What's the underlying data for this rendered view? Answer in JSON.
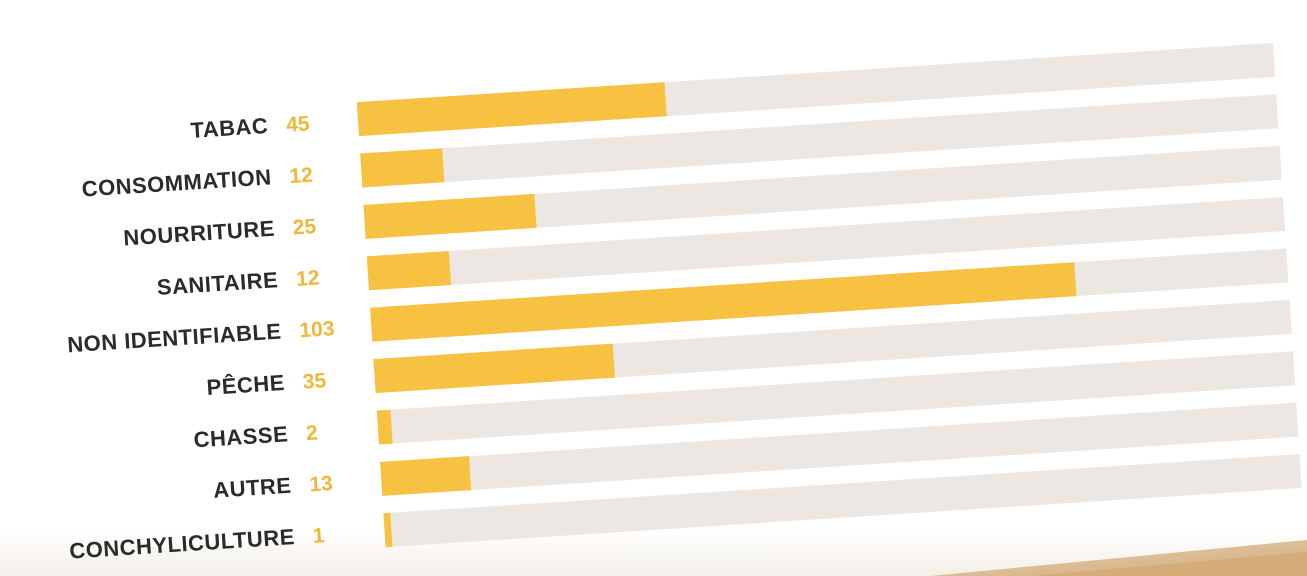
{
  "chart_data": {
    "type": "bar",
    "orientation": "horizontal",
    "categories": [
      "TABAC",
      "CONSOMMATION",
      "NOURRITURE",
      "SANITAIRE",
      "NON IDENTIFIABLE",
      "PÊCHE",
      "CHASSE",
      "AUTRE",
      "CONCHYLICULTURE"
    ],
    "values": [
      45,
      12,
      25,
      12,
      103,
      35,
      2,
      13,
      1
    ],
    "xlim": [
      0,
      134
    ],
    "grid": false,
    "legend": "none",
    "colors": {
      "bar": "#f7c242",
      "track": "#ece7e2",
      "category_text": "#2b2b2b",
      "value_text": "#f0b83a"
    }
  }
}
